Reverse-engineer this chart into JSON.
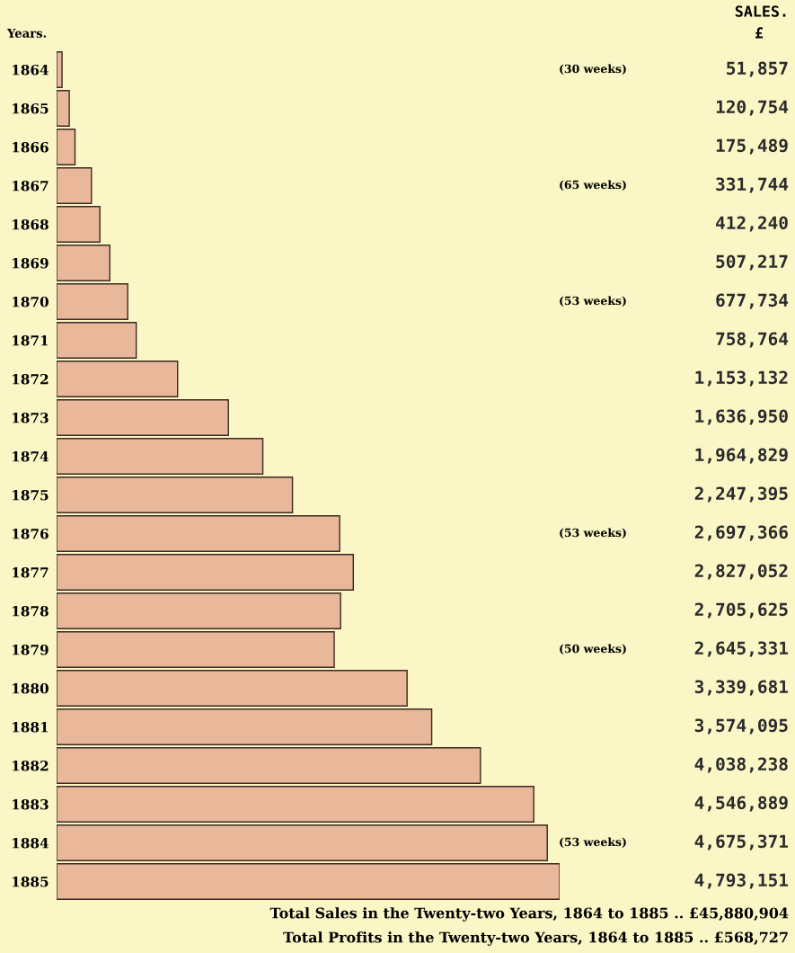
{
  "chart_data": {
    "type": "bar",
    "orientation": "horizontal",
    "ylabel": "Years.",
    "categories": [
      "1864",
      "1865",
      "1866",
      "1867",
      "1868",
      "1869",
      "1870",
      "1871",
      "1872",
      "1873",
      "1874",
      "1875",
      "1876",
      "1877",
      "1878",
      "1879",
      "1880",
      "1881",
      "1882",
      "1883",
      "1884",
      "1885"
    ],
    "values": [
      51857,
      120754,
      175489,
      331744,
      412240,
      507217,
      677734,
      758764,
      1153132,
      1636950,
      1964829,
      2247395,
      2697366,
      2827052,
      2705625,
      2645331,
      3339681,
      3574095,
      4038238,
      4546889,
      4675371,
      4793151
    ],
    "value_labels": [
      "51,857",
      "120,754",
      "175,489",
      "331,744",
      "412,240",
      "507,217",
      "677,734",
      "758,764",
      "1,153,132",
      "1,636,950",
      "1,964,829",
      "2,247,395",
      "2,697,366",
      "2,827,052",
      "2,705,625",
      "2,645,331",
      "3,339,681",
      "3,574,095",
      "4,038,238",
      "4,546,889",
      "4,675,371",
      "4,793,151"
    ],
    "color": "#e9b79a",
    "grid": false,
    "annotations": [
      "SALES.",
      "£",
      "(30 weeks)",
      "(65 weeks)",
      "(53 weeks)",
      "(53 weeks)",
      "(50 weeks)",
      "(53 weeks)",
      "Total Sales in the Twenty-two Years, 1864 to 1885 .. £45,880,904",
      "Total Profits in the Twenty-two Years, 1864 to 1885 .. £568,727"
    ]
  }
}
